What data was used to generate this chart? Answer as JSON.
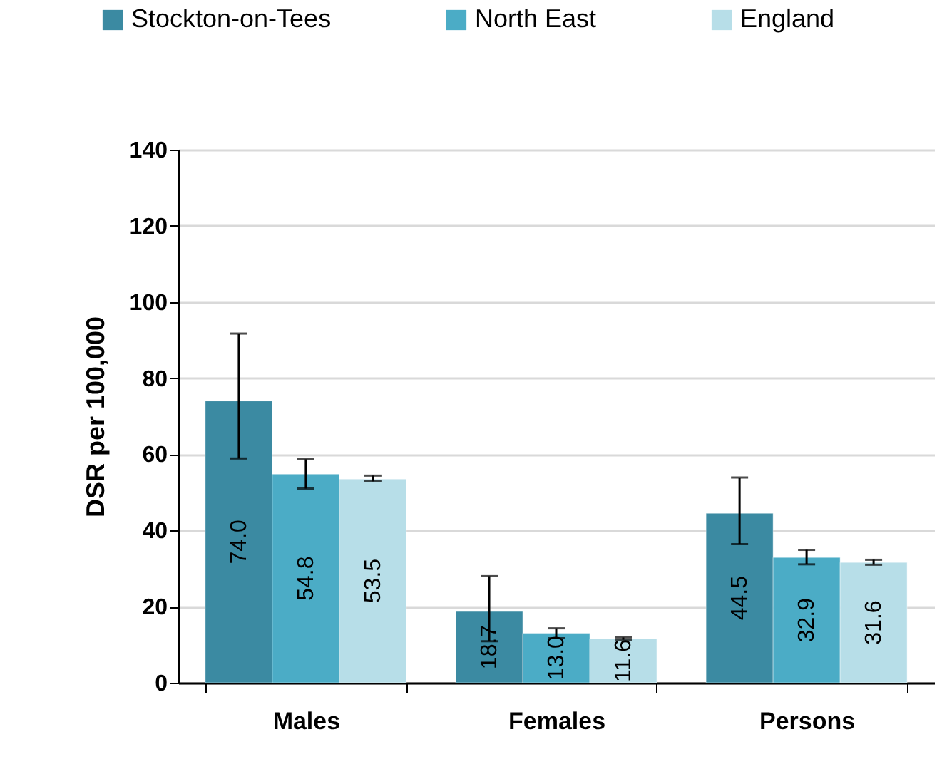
{
  "chart_data": {
    "type": "bar",
    "ylabel": "DSR per 100,000",
    "categories": [
      "Males",
      "Females",
      "Persons"
    ],
    "series": [
      {
        "name": "Stockton-on-Tees",
        "color": "#3b8aa2",
        "values": [
          74.0,
          18.7,
          44.5
        ],
        "value_labels": [
          "74.0",
          "18.7",
          "44.5"
        ],
        "errors": [
          [
            58.9,
            91.7
          ],
          [
            10.9,
            28.0
          ],
          [
            36.4,
            53.9
          ]
        ]
      },
      {
        "name": "North East",
        "color": "#4bacc6",
        "values": [
          54.8,
          13.0,
          32.9
        ],
        "value_labels": [
          "54.8",
          "13.0",
          "32.9"
        ],
        "errors": [
          [
            51.0,
            58.7
          ],
          [
            11.7,
            14.3
          ],
          [
            31.1,
            34.9
          ]
        ]
      },
      {
        "name": "England",
        "color": "#b7dee8",
        "values": [
          53.5,
          11.6,
          31.6
        ],
        "value_labels": [
          "53.5",
          "11.6",
          "31.6"
        ],
        "errors": [
          [
            52.9,
            54.4
          ],
          [
            11.3,
            11.9
          ],
          [
            31.0,
            32.3
          ]
        ]
      }
    ],
    "ylim": [
      0,
      140
    ],
    "yticks": [
      0,
      20,
      40,
      60,
      80,
      100,
      120,
      140
    ],
    "grid": "y",
    "legend": "top"
  }
}
